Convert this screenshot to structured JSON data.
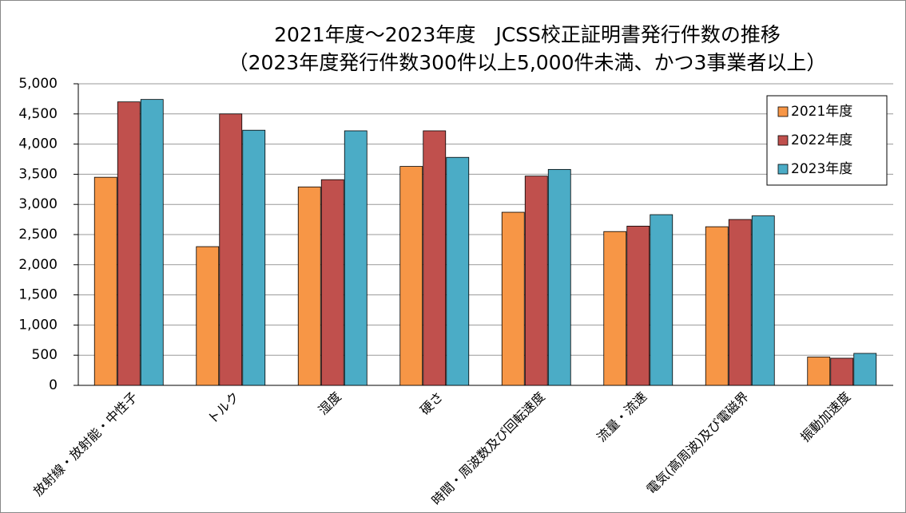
{
  "chart_data": {
    "type": "bar",
    "title": "2021年度～2023年度　JCSS校正証明書発行件数の推移",
    "subtitle": "（2023年度発行件数300件以上5,000件未満、かつ3事業者以上）",
    "categories": [
      "放射線・放射能・中性子",
      "トルク",
      "湿度",
      "硬さ",
      "時間・周波数及び回転速度",
      "流量・流速",
      "電気(高周波)及び電磁界",
      "振動加速度"
    ],
    "series": [
      {
        "name": "2021年度",
        "color": "#f79646",
        "values": [
          3450,
          2300,
          3290,
          3630,
          2870,
          2550,
          2630,
          470
        ]
      },
      {
        "name": "2022年度",
        "color": "#c0504d",
        "values": [
          4700,
          4500,
          3410,
          4220,
          3470,
          2640,
          2750,
          450
        ]
      },
      {
        "name": "2023年度",
        "color": "#4bacc6",
        "values": [
          4740,
          4230,
          4220,
          3780,
          3580,
          2830,
          2810,
          530
        ]
      }
    ],
    "ylim": [
      0,
      5000
    ],
    "yticks": [
      0,
      500,
      {
        "value": 1000,
        "label": "1,000"
      },
      {
        "value": 1500,
        "label": "1,500"
      },
      {
        "value": 2000,
        "label": "2,000"
      },
      {
        "value": 2500,
        "label": "2,500"
      },
      {
        "value": 3000,
        "label": "3,000"
      },
      {
        "value": 3500,
        "label": "3,500"
      },
      {
        "value": 4000,
        "label": "4,000"
      },
      {
        "value": 4500,
        "label": "4,500"
      },
      {
        "value": 5000,
        "label": "5,000"
      }
    ],
    "grid": true,
    "legend": "upper right"
  }
}
